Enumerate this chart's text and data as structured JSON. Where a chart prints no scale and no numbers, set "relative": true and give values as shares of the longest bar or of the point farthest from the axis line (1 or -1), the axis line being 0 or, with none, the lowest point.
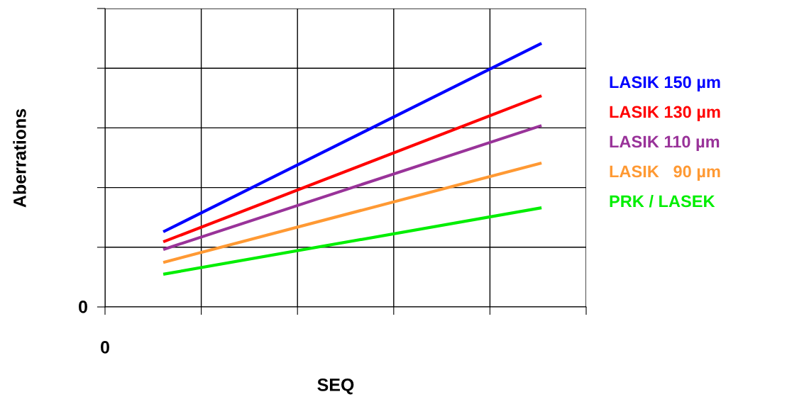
{
  "chart_data": {
    "type": "line",
    "relative": true,
    "xlabel": "SEQ",
    "ylabel": "Aberrations",
    "categories": [
      null,
      null
    ],
    "series": [
      {
        "name": "LASIK 150 µm",
        "color": "#0000ff",
        "values": [
          0.285,
          1
        ]
      },
      {
        "name": "LASIK 130 µm",
        "color": "#ff0000",
        "values": [
          0.247,
          0.801
        ]
      },
      {
        "name": "LASIK 110 µm",
        "color": "#993399",
        "values": [
          0.218,
          0.688
        ]
      },
      {
        "name": "LASIK   90 µm",
        "color": "#ff9933",
        "values": [
          0.169,
          0.546
        ]
      },
      {
        "name": "PRK / LASEK",
        "color": "#00ee00",
        "values": [
          0.124,
          0.376
        ]
      }
    ],
    "annotations": [
      "0",
      "0"
    ],
    "grid": true,
    "legend": "right",
    "marker": "none",
    "line_style": "solid"
  }
}
